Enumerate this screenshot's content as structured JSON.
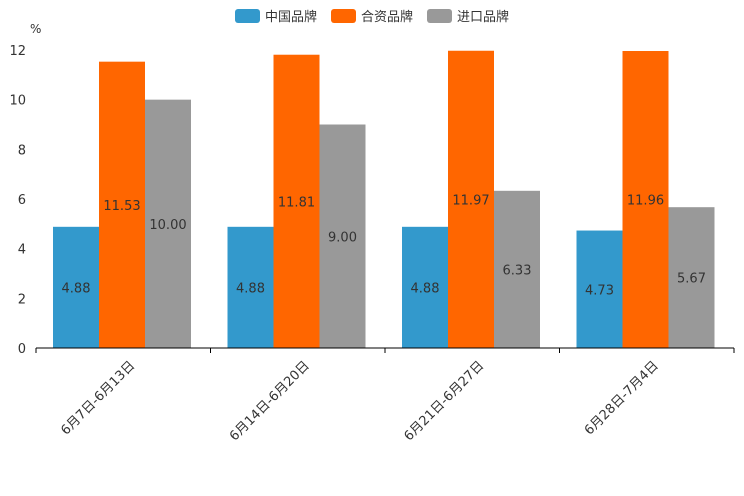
{
  "chart_data": {
    "type": "bar",
    "unit": "%",
    "categories": [
      "6月7日-6月13日",
      "6月14日-6月20日",
      "6月21日-6月27日",
      "6月28日-7月4日"
    ],
    "series": [
      {
        "name": "中国品牌",
        "color": "#3399cc",
        "values": [
          4.88,
          4.88,
          4.88,
          4.73
        ],
        "labels": [
          "4.88",
          "4.88",
          "4.88",
          "4.73"
        ]
      },
      {
        "name": "合资品牌",
        "color": "#ff6600",
        "values": [
          11.53,
          11.81,
          11.97,
          11.96
        ],
        "labels": [
          "11.53",
          "11.81",
          "11.97",
          "11.96"
        ]
      },
      {
        "name": "进口品牌",
        "color": "#999999",
        "values": [
          10.0,
          9.0,
          6.33,
          5.67
        ],
        "labels": [
          "10.00",
          "9.00",
          "6.33",
          "5.67"
        ]
      }
    ],
    "ylim": [
      0,
      12
    ],
    "yticks": [
      0,
      2,
      4,
      6,
      8,
      10,
      12
    ],
    "legend": "top-center",
    "grid": false
  }
}
